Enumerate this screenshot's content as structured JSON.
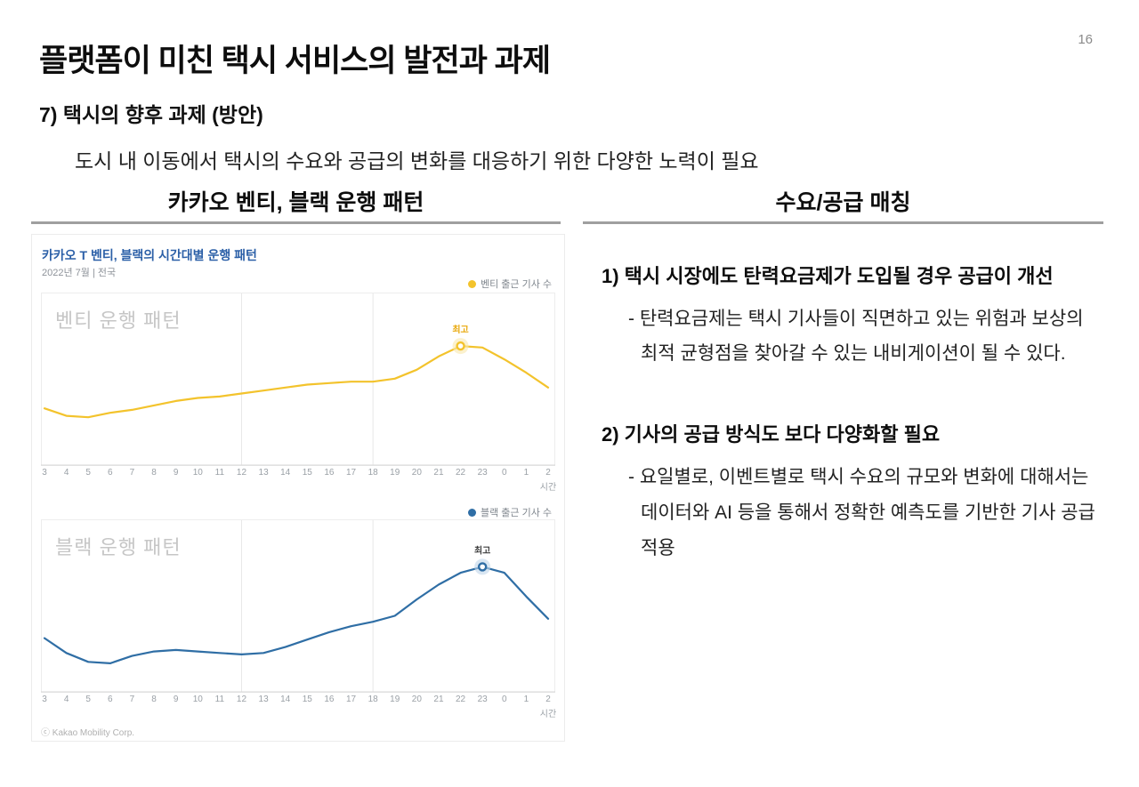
{
  "page": {
    "number": "16",
    "title": "플랫폼이 미친 택시 서비스의 발전과 과제",
    "subtitle": "7) 택시의 향후 과제 (방안)",
    "lead": "도시 내 이동에서 택시의 수요와 공급의 변화를 대응하기 위한 다양한 노력이 필요"
  },
  "columns": {
    "left_header": "카카오 벤티, 블랙 운행 패턴",
    "right_header": "수요/공급 매칭"
  },
  "right_panel": {
    "point1_title": "1) 택시 시장에도 탄력요금제가 도입될 경우 공급이 개선",
    "point1_body": "- 탄력요금제는 택시 기사들이 직면하고 있는 위험과 보상의 최적 균형점을 찾아갈 수 있는 내비게이션이 될 수 있다.",
    "point2_title": "2) 기사의 공급 방식도 보다 다양화할 필요",
    "point2_body": "- 요일별로, 이벤트별로 택시 수요의 규모와 변화에 대해서는 데이터와 AI 등을 통해서 정확한 예측도를 기반한 기사 공급 적용"
  },
  "chart_data": {
    "type": "line",
    "title": "카카오 T 벤티, 블랙의 시간대별 운행 패턴",
    "subtitle": "2022년 7월 | 전국",
    "x_label": "시간",
    "credit": "ⓒ Kakao Mobility Corp.",
    "categories": [
      "3",
      "4",
      "5",
      "6",
      "7",
      "8",
      "9",
      "10",
      "11",
      "12",
      "13",
      "14",
      "15",
      "16",
      "17",
      "18",
      "19",
      "20",
      "21",
      "22",
      "23",
      "0",
      "1",
      "2"
    ],
    "gridline_categories": [
      "12",
      "18"
    ],
    "ylim": [
      0,
      100
    ],
    "legend_position": "top-right",
    "charts": [
      {
        "name": "벤티 출근 기사 수",
        "watermark": "벤티 운행 패턴",
        "color": "#F3C32C",
        "halo_color": "#F8E7AE",
        "peak_label": "최고",
        "peak_label_color": "#E9A80B",
        "peak_category": "22",
        "values": [
          34,
          29,
          28,
          31,
          33,
          36,
          39,
          41,
          42,
          44,
          46,
          48,
          50,
          51,
          52,
          52,
          54,
          60,
          69,
          76,
          75,
          67,
          58,
          48
        ]
      },
      {
        "name": "블랙 출근 기사 수",
        "watermark": "블랙 운행 패턴",
        "color": "#2F6EA5",
        "halo_color": "#BFD6EA",
        "peak_label": "최고",
        "peak_label_color": "#3D3D3D",
        "peak_category": "23",
        "values": [
          32,
          22,
          16,
          15,
          20,
          23,
          24,
          23,
          22,
          21,
          22,
          26,
          31,
          36,
          40,
          43,
          47,
          58,
          68,
          76,
          80,
          76,
          60,
          45
        ]
      }
    ]
  }
}
